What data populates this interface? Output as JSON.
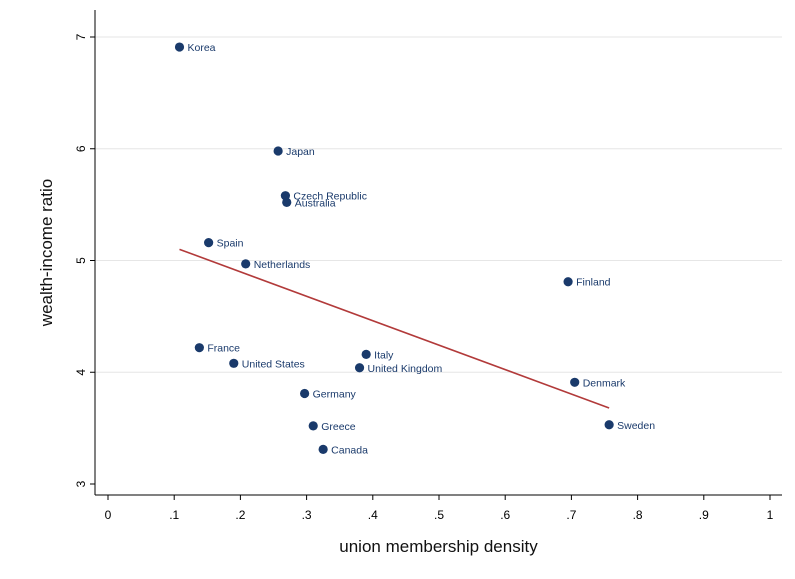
{
  "chart_data": {
    "type": "scatter",
    "title": "",
    "xlabel": "union membership density",
    "ylabel": "wealth-income ratio",
    "xlim": [
      0,
      1
    ],
    "ylim": [
      3,
      7
    ],
    "x_ticks": [
      {
        "value": 0,
        "label": "0"
      },
      {
        "value": 0.1,
        "label": ".1"
      },
      {
        "value": 0.2,
        "label": ".2"
      },
      {
        "value": 0.3,
        "label": ".3"
      },
      {
        "value": 0.4,
        "label": ".4"
      },
      {
        "value": 0.5,
        "label": ".5"
      },
      {
        "value": 0.6,
        "label": ".6"
      },
      {
        "value": 0.7,
        "label": ".7"
      },
      {
        "value": 0.8,
        "label": ".8"
      },
      {
        "value": 0.9,
        "label": ".9"
      },
      {
        "value": 1,
        "label": "1"
      }
    ],
    "y_ticks": [
      {
        "value": 3,
        "label": "3"
      },
      {
        "value": 4,
        "label": "4"
      },
      {
        "value": 5,
        "label": "5"
      },
      {
        "value": 6,
        "label": "6"
      },
      {
        "value": 7,
        "label": "7"
      }
    ],
    "grid": "horizontal",
    "points": [
      {
        "label": "Korea",
        "x": 0.108,
        "y": 6.91
      },
      {
        "label": "Japan",
        "x": 0.257,
        "y": 5.98
      },
      {
        "label": "Czech Republic",
        "x": 0.268,
        "y": 5.58
      },
      {
        "label": "Australia",
        "x": 0.27,
        "y": 5.52
      },
      {
        "label": "Spain",
        "x": 0.152,
        "y": 5.16
      },
      {
        "label": "Netherlands",
        "x": 0.208,
        "y": 4.97
      },
      {
        "label": "Finland",
        "x": 0.695,
        "y": 4.81
      },
      {
        "label": "France",
        "x": 0.138,
        "y": 4.22
      },
      {
        "label": "United States",
        "x": 0.19,
        "y": 4.08
      },
      {
        "label": "Italy",
        "x": 0.39,
        "y": 4.16
      },
      {
        "label": "United Kingdom",
        "x": 0.38,
        "y": 4.04
      },
      {
        "label": "Denmark",
        "x": 0.705,
        "y": 3.91
      },
      {
        "label": "Germany",
        "x": 0.297,
        "y": 3.81
      },
      {
        "label": "Greece",
        "x": 0.31,
        "y": 3.52
      },
      {
        "label": "Sweden",
        "x": 0.757,
        "y": 3.53
      },
      {
        "label": "Canada",
        "x": 0.325,
        "y": 3.31
      }
    ],
    "fit_line": {
      "x": [
        0.108,
        0.757
      ],
      "y": [
        5.1,
        3.68
      ]
    },
    "colors": {
      "point": "#1a3a6b",
      "fit_line": "#b23a3a",
      "grid": "#e6e6e6",
      "label": "#1a3a6b"
    }
  }
}
